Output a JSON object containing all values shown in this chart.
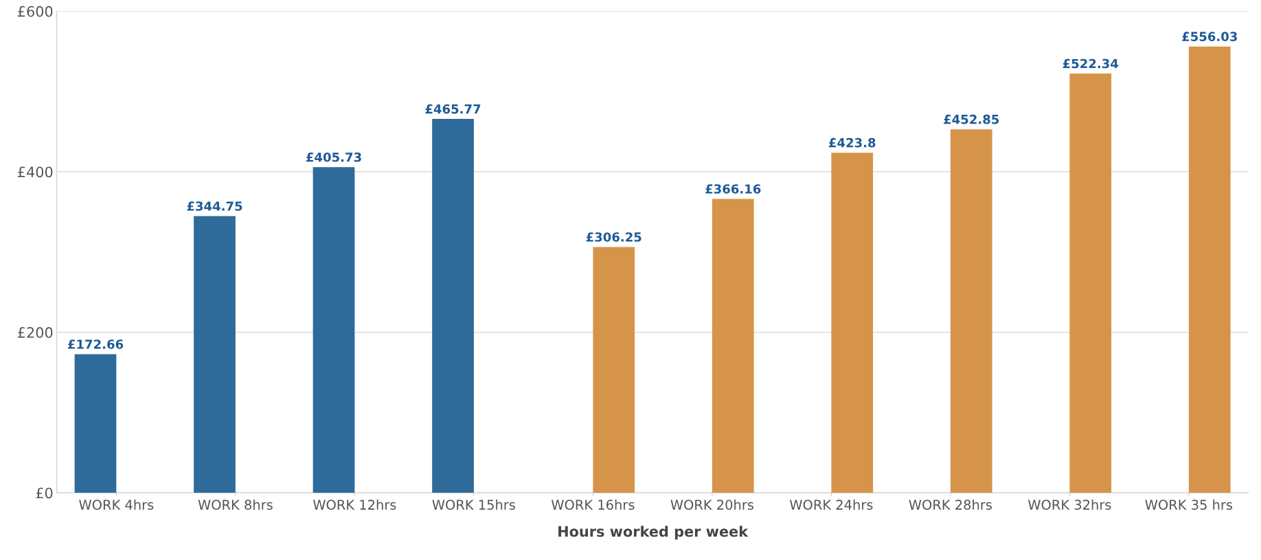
{
  "chart_data": {
    "type": "bar",
    "xlabel": "Hours worked per week",
    "categories": [
      "WORK 4hrs",
      "WORK 8hrs",
      "WORK 12hrs",
      "WORK 15hrs",
      "WORK 16hrs",
      "WORK 20hrs",
      "WORK 24hrs",
      "WORK 28hrs",
      "WORK 32hrs",
      "WORK 35 hrs"
    ],
    "series": [
      {
        "color": "#2e6a9a",
        "values": [
          172.66,
          344.75,
          405.73,
          465.77,
          null,
          null,
          null,
          null,
          null,
          null
        ],
        "value_labels": [
          "£172.66",
          "£344.75",
          "£405.73",
          "£465.77",
          null,
          null,
          null,
          null,
          null,
          null
        ]
      },
      {
        "color": "#d6944a",
        "values": [
          null,
          null,
          null,
          null,
          306.25,
          366.16,
          423.8,
          452.85,
          522.34,
          556.03
        ],
        "value_labels": [
          null,
          null,
          null,
          null,
          "£306.25",
          "£366.16",
          "£423.8",
          "£452.85",
          "£522.34",
          "£556.03"
        ]
      }
    ],
    "ylim": [
      0,
      600
    ],
    "yticks": [
      {
        "value": 0,
        "label": "£0"
      },
      {
        "value": 200,
        "label": "£200"
      },
      {
        "value": 400,
        "label": "£400"
      },
      {
        "value": 600,
        "label": "£600"
      }
    ],
    "grid": "y",
    "legend": false
  }
}
